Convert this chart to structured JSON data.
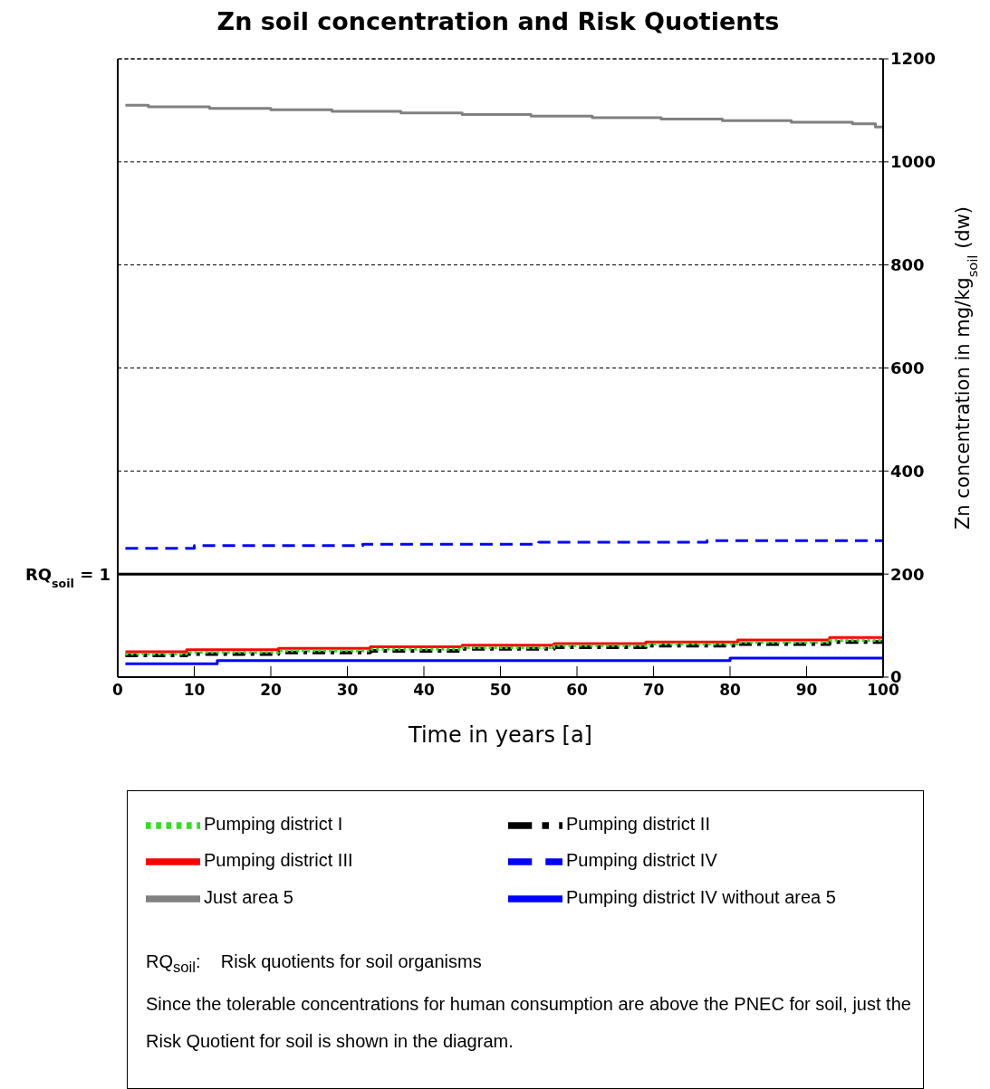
{
  "chart_data": {
    "type": "step",
    "title": "Zn soil concentration and Risk Quotients",
    "xlabel": "Time in years [a]",
    "y2label": "Zn concentration in mg/kg$_{soil}$ (dw)",
    "xlim": [
      0,
      100
    ],
    "xticks": [
      0,
      10,
      20,
      30,
      40,
      50,
      60,
      70,
      80,
      90,
      100
    ],
    "y2lim": [
      0,
      1200
    ],
    "y2ticks": [
      0,
      200,
      400,
      600,
      800,
      1000,
      1200
    ],
    "grid": "y",
    "legend": "bottom",
    "series": [
      {
        "name": "Pumping district I",
        "color": "#33dd22",
        "line_style": "dotted",
        "axis": "y2",
        "x": [
          1,
          9,
          21,
          33,
          45,
          57,
          69,
          81,
          93,
          100
        ],
        "values": [
          45,
          48,
          51,
          54,
          57,
          61,
          64,
          67,
          71,
          74
        ]
      },
      {
        "name": "Pumping district II",
        "color": "#000000",
        "line_style": "dashdot",
        "axis": "y2",
        "x": [
          1,
          9,
          21,
          33,
          45,
          57,
          69,
          81,
          93,
          100
        ],
        "values": [
          42,
          45,
          48,
          51,
          55,
          58,
          61,
          64,
          68,
          71
        ]
      },
      {
        "name": "Pumping district III",
        "color": "#ff0000",
        "line_style": "solid",
        "axis": "y2",
        "x": [
          1,
          9,
          21,
          33,
          45,
          57,
          69,
          81,
          93,
          100
        ],
        "values": [
          49,
          53,
          56,
          59,
          62,
          65,
          68,
          72,
          77,
          77
        ]
      },
      {
        "name": "Pumping district IV",
        "color": "#0000ff",
        "line_style": "dashed",
        "axis": "y2",
        "x": [
          1,
          10,
          32,
          55,
          77,
          100
        ],
        "values": [
          250,
          255,
          258,
          262,
          265,
          265
        ]
      },
      {
        "name": "Just area 5",
        "color": "#808080",
        "line_style": "solid",
        "axis": "y2",
        "x": [
          1,
          4,
          12,
          20,
          28,
          37,
          45,
          54,
          62,
          71,
          79,
          88,
          96,
          99,
          100
        ],
        "values": [
          1110,
          1107,
          1104,
          1101,
          1098,
          1095,
          1092,
          1089,
          1086,
          1083,
          1080,
          1077,
          1074,
          1068,
          1068
        ]
      },
      {
        "name": "Pumping district IV without area 5",
        "color": "#0000ff",
        "line_style": "solid",
        "axis": "y2",
        "x": [
          1,
          13,
          80,
          100
        ],
        "values": [
          26,
          32,
          37,
          37
        ]
      }
    ],
    "ref_lines": [
      {
        "axis": "y2",
        "value": 200,
        "color": "#000000",
        "line_style": "solid"
      }
    ],
    "annotations": [
      "RQ$_{soil}$ = 1",
      "RQ$_{soil}$:    Risk quotients for soil organisms",
      "Since the tolerable concentrations for human consumption are above the PNEC for soil, just the Risk Quotient for soil is shown in the diagram."
    ]
  }
}
